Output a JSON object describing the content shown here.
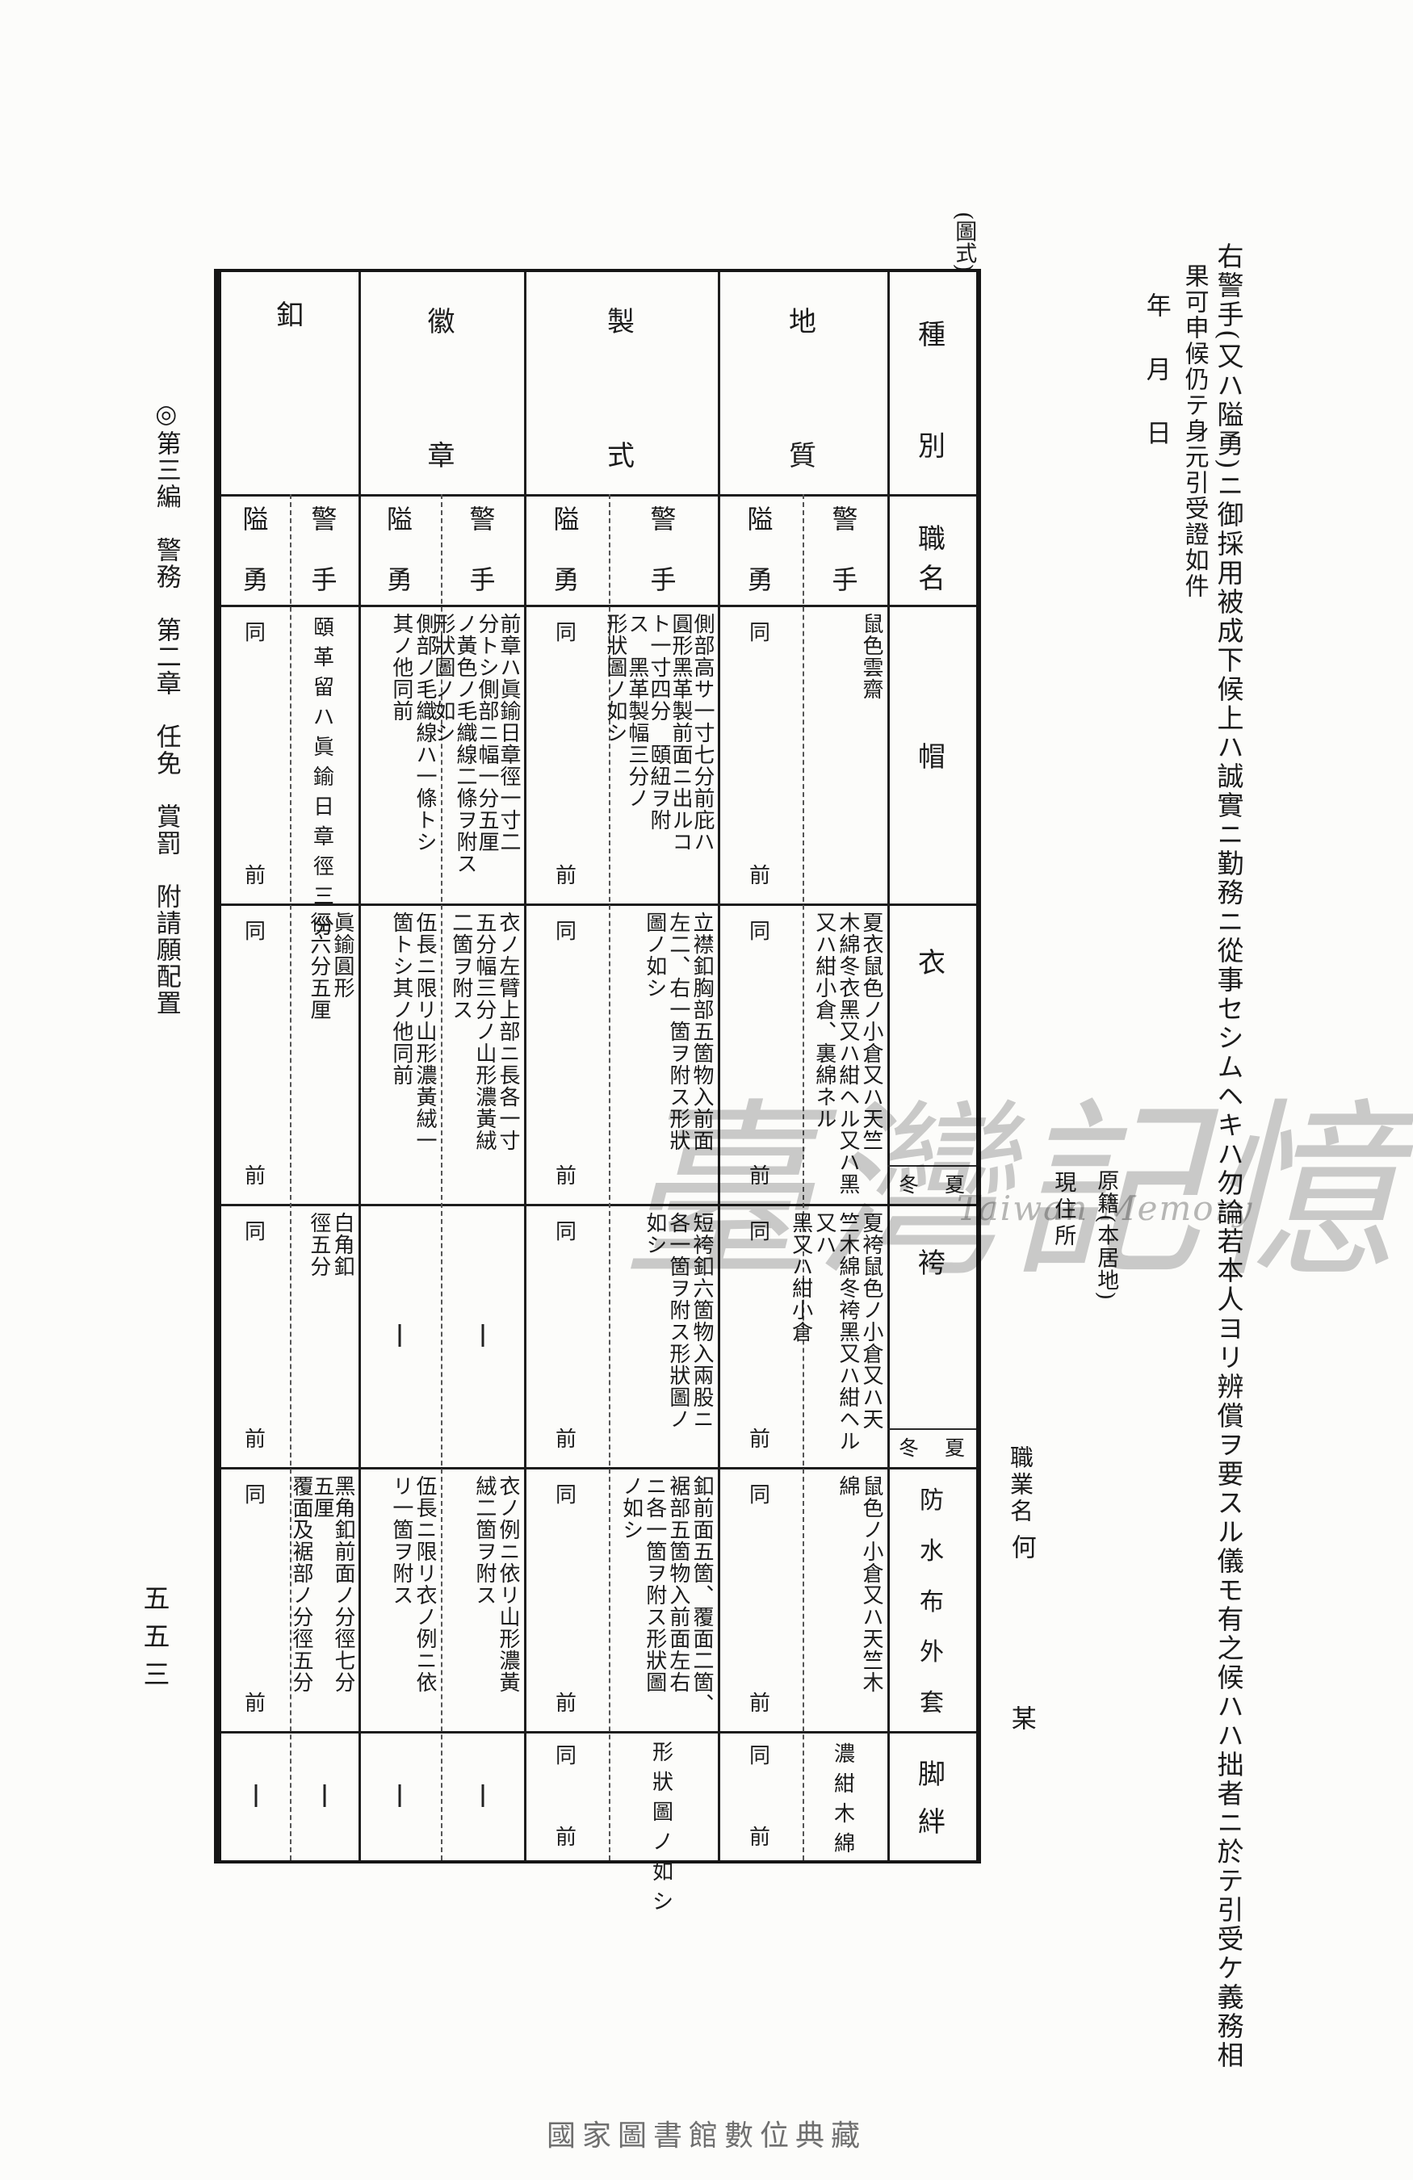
{
  "figure_label": "(圖式)",
  "margin_left": {
    "edition_heading": "◎第三編　警務　第二章　任免　賞罰　附請願配置",
    "page_number": "五五三"
  },
  "right_text": {
    "statement_line1": "右警手(又ハ隘勇)ニ御採用被成下候上ハ誠實ニ勤務ニ從事セシムヘキハ勿論若本人ヨリ辨償ヲ要スル儀モ有之候ハハ拙者ニ於テ引受ケ義務相",
    "statement_line2": "果可申候仍テ身元引受證如件",
    "date_line": "年月日",
    "registry_label": "原籍(本居地)",
    "address_label": "現住所",
    "occupation_label": "職業名",
    "surname": "何",
    "given_name": "某"
  },
  "watermark": {
    "cjk": "臺灣記憶",
    "latin": "Taiwan Memory"
  },
  "footer_caption": "國家圖書館數位典藏",
  "table": {
    "corner": {
      "top": "種別",
      "bottom": "職名"
    },
    "season": {
      "summer": "夏",
      "winter": "冬"
    },
    "ditto": "同前",
    "col_headers": {
      "chishitsu": "地質",
      "seishiki": "製式",
      "kisho": "徽章",
      "kuchi": "釦"
    },
    "sub_headers": {
      "keishu": "警手",
      "aiyu": "隘勇"
    },
    "rows": {
      "bo": {
        "label": "帽",
        "chishitsu_k": "鼠色雲齋",
        "seishiki_k": "側部高サ一寸七分前庇ハ\n圓形黑革製前面ニ出ルコ\nト一寸四分　頤紐ヲ附\nス　黑革製幅三分ノ\n形狀圖ノ如シ",
        "kisho_k": "前章ハ眞鍮日章徑一寸二\n分トシ側部ニ幅一分五厘\nノ黃色ノ毛織線二條ヲ附ス\n形狀圖ノ如シ",
        "kisho_a": "側部ノ毛織線ハ一條トシ\n其ノ他同前",
        "kuchi_k": "頤革留ハ眞鍮日章徑三分"
      },
      "i": {
        "label": "衣",
        "chishitsu_k": "夏衣鼠色ノ小倉又ハ天竺\n木綿冬衣黑又ハ紺ヘル又ハ黑\n又ハ紺小倉、裏綿ネル",
        "seishiki_k": "立襟釦胸部五箇物入前面\n左二、右一箇ヲ附ス形狀\n圖ノ如シ",
        "kisho_k": "衣ノ左臂上部ニ長各一寸\n五分幅三分ノ山形濃黃絨\n二箇ヲ附ス",
        "kisho_a": "伍長ニ限リ山形濃黃絨一\n箇トシ其ノ他同前",
        "kuchi_k": "眞鍮圓形\n徑六分五厘"
      },
      "hakama": {
        "label": "袴",
        "chishitsu_k": "夏袴鼠色ノ小倉又ハ天\n竺木綿冬袴黑又ハ紺ヘル又ハ\n黑又ハ紺小倉",
        "seishiki_k": "短袴釦六箇物入兩股ニ\n各一箇ヲ附ス形狀圖ノ\n如シ",
        "kuchi_k": "白角釦\n徑五分"
      },
      "gaito": {
        "label": "防水布外套",
        "chishitsu_k": "鼠色ノ小倉又ハ天竺木\n綿",
        "seishiki_k": "釦前面五箇、覆面二箇、\n裾部五箇物入前面左右\nニ各一箇ヲ附ス形狀圖\nノ如シ",
        "kisho_k": "衣ノ例ニ依リ山形濃黃\n絨二箇ヲ附ス",
        "kisho_a": "伍長ニ限リ衣ノ例ニ依\nリ一箇ヲ附ス",
        "kuchi_k": "黑角釦前面ノ分徑七分\n五厘\n覆面及裾部ノ分徑五分"
      },
      "kyahan": {
        "label": "脚絆",
        "chishitsu_k": "濃紺木綿",
        "seishiki_k": "形狀圖ノ如シ"
      }
    }
  }
}
